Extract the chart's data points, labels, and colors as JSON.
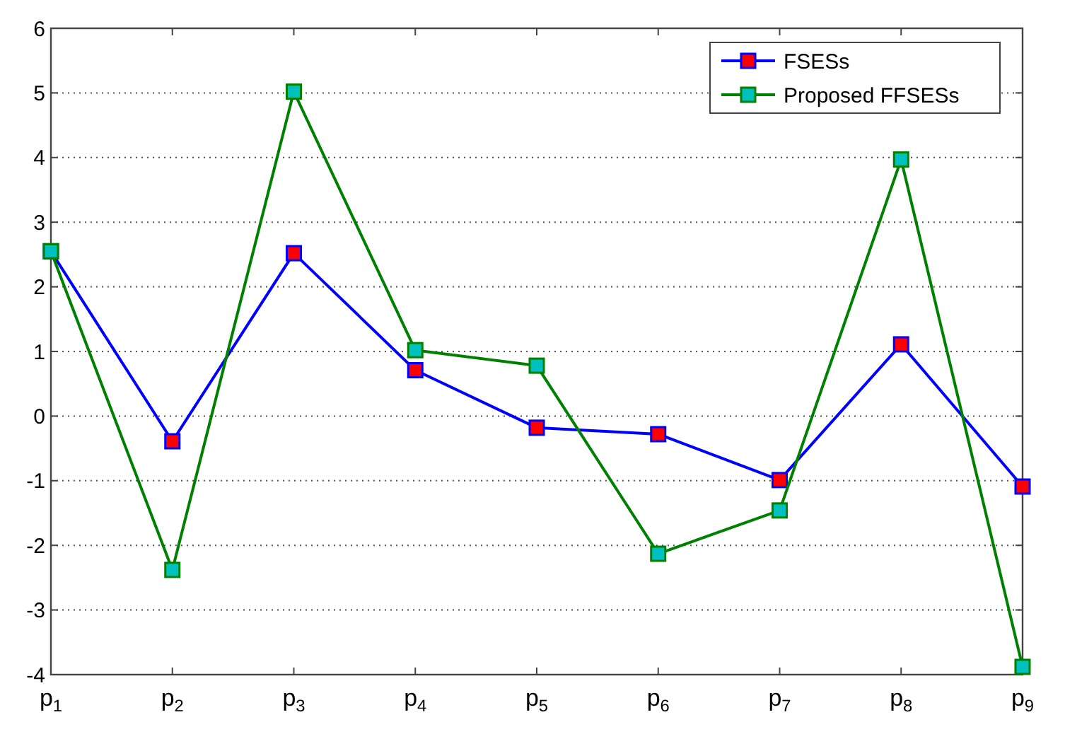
{
  "chart_data": {
    "type": "line",
    "categories": [
      "p$_{1}$",
      "p$_{2}$",
      "p$_{3}$",
      "p$_{4}$",
      "p$_{5}$",
      "p$_{6}$",
      "p$_{7}$",
      "p$_{8}$",
      "p$_{9}$"
    ],
    "series": [
      {
        "name": "FSESs",
        "color": "#0000ff",
        "values": [
          2.55,
          -0.39,
          2.52,
          0.71,
          -0.18,
          -0.28,
          -0.99,
          1.11,
          -1.09
        ]
      },
      {
        "name": "Proposed FFSESs",
        "color": "#008000",
        "values": [
          2.55,
          -2.38,
          5.02,
          1.02,
          0.78,
          -2.13,
          -1.46,
          3.97,
          -3.88
        ]
      }
    ],
    "ylim": [
      -4,
      6
    ],
    "yticks": [
      -4,
      -3,
      -2,
      -1,
      0,
      1,
      2,
      3,
      4,
      5,
      6
    ],
    "grid": "y",
    "legend": "top right",
    "marker": "square",
    "line_style": "solid"
  }
}
